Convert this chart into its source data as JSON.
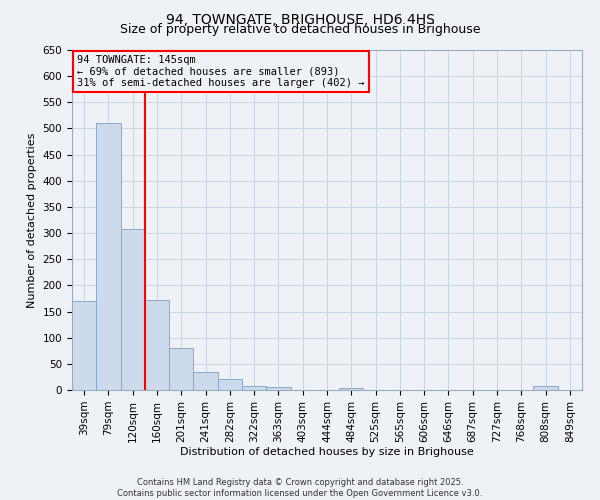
{
  "title": "94, TOWNGATE, BRIGHOUSE, HD6 4HS",
  "subtitle": "Size of property relative to detached houses in Brighouse",
  "xlabel": "Distribution of detached houses by size in Brighouse",
  "ylabel": "Number of detached properties",
  "categories": [
    "39sqm",
    "79sqm",
    "120sqm",
    "160sqm",
    "201sqm",
    "241sqm",
    "282sqm",
    "322sqm",
    "363sqm",
    "403sqm",
    "444sqm",
    "484sqm",
    "525sqm",
    "565sqm",
    "606sqm",
    "646sqm",
    "687sqm",
    "727sqm",
    "768sqm",
    "808sqm",
    "849sqm"
  ],
  "values": [
    170,
    510,
    308,
    173,
    80,
    35,
    21,
    8,
    5,
    0,
    0,
    3,
    0,
    0,
    0,
    0,
    0,
    0,
    0,
    7,
    0
  ],
  "bar_color": "#ccdaeb",
  "bar_edge_color": "#7ba3c8",
  "vline_x": 2.5,
  "vline_color": "red",
  "annotation_title": "94 TOWNGATE: 145sqm",
  "annotation_line1": "← 69% of detached houses are smaller (893)",
  "annotation_line2": "31% of semi-detached houses are larger (402) →",
  "annotation_box_color": "red",
  "ylim": [
    0,
    650
  ],
  "yticks": [
    0,
    50,
    100,
    150,
    200,
    250,
    300,
    350,
    400,
    450,
    500,
    550,
    600,
    650
  ],
  "footer1": "Contains HM Land Registry data © Crown copyright and database right 2025.",
  "footer2": "Contains public sector information licensed under the Open Government Licence v3.0.",
  "background_color": "#eef2f7",
  "grid_color": "#c5cfe0",
  "title_fontsize": 10,
  "subtitle_fontsize": 9,
  "axis_label_fontsize": 8,
  "tick_fontsize": 7.5,
  "annotation_fontsize": 7.5,
  "footer_fontsize": 6
}
